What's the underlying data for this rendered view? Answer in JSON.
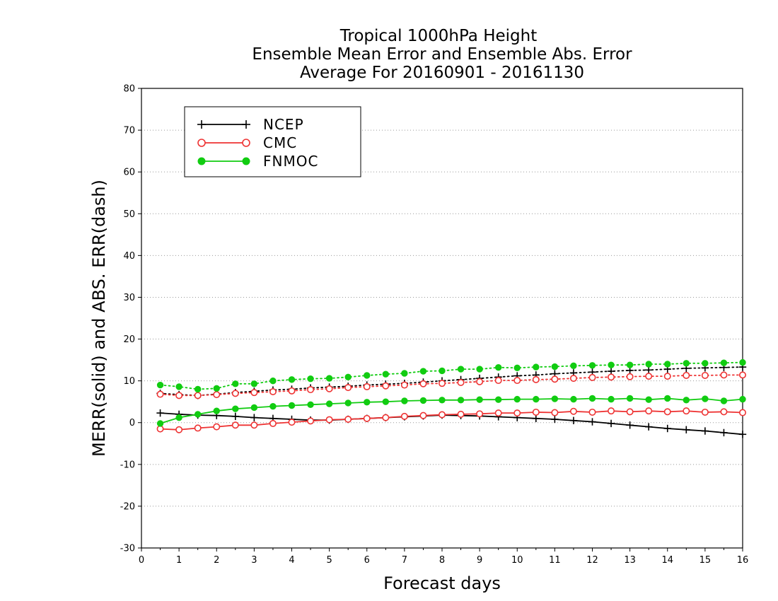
{
  "chart_data": {
    "type": "line",
    "title_lines": [
      "Tropical 1000hPa Height",
      "Ensemble Mean Error and Ensemble Abs. Error",
      "Average For 20160901 - 20161130"
    ],
    "xlabel": "Forecast days",
    "ylabel": "MERR(solid) and ABS. ERR(dash)",
    "xlim": [
      0,
      16
    ],
    "ylim": [
      -30,
      80
    ],
    "xticks": [
      0,
      1,
      2,
      3,
      4,
      5,
      6,
      7,
      8,
      9,
      10,
      11,
      12,
      13,
      14,
      15,
      16
    ],
    "yticks": [
      -30,
      -20,
      -10,
      0,
      10,
      20,
      30,
      40,
      50,
      60,
      70,
      80
    ],
    "grid": "horizontal-dotted",
    "legend_position": "top-left",
    "x": [
      0.5,
      1.0,
      1.5,
      2.0,
      2.5,
      3.0,
      3.5,
      4.0,
      4.5,
      5.0,
      5.5,
      6.0,
      6.5,
      7.0,
      7.5,
      8.0,
      8.5,
      9.0,
      9.5,
      10.0,
      10.5,
      11.0,
      11.5,
      12.0,
      12.5,
      13.0,
      13.5,
      14.0,
      14.5,
      15.0,
      15.5,
      16.0
    ],
    "series": [
      {
        "name": "NCEP",
        "color": "#000000",
        "marker": "plus",
        "mean_error": [
          2.3,
          2.0,
          1.8,
          1.7,
          1.5,
          1.2,
          1.0,
          0.8,
          0.6,
          0.6,
          0.8,
          1.0,
          1.2,
          1.4,
          1.6,
          1.8,
          1.7,
          1.6,
          1.4,
          1.2,
          1.0,
          0.8,
          0.5,
          0.2,
          -0.2,
          -0.6,
          -1.0,
          -1.4,
          -1.7,
          -2.0,
          -2.4,
          -2.8
        ],
        "abs_error": [
          7.0,
          6.7,
          6.5,
          6.8,
          7.2,
          7.5,
          7.8,
          8.0,
          8.3,
          8.5,
          8.7,
          9.0,
          9.2,
          9.4,
          9.7,
          10.0,
          10.3,
          10.6,
          10.9,
          11.2,
          11.4,
          11.7,
          11.9,
          12.1,
          12.3,
          12.5,
          12.6,
          12.8,
          13.0,
          13.1,
          13.2,
          13.3
        ]
      },
      {
        "name": "CMC",
        "color": "#ee3333",
        "marker": "open-circle",
        "mean_error": [
          -1.5,
          -1.7,
          -1.3,
          -1.0,
          -0.6,
          -0.6,
          -0.2,
          0.1,
          0.4,
          0.7,
          0.8,
          1.0,
          1.2,
          1.5,
          1.7,
          1.9,
          2.0,
          2.1,
          2.3,
          2.3,
          2.5,
          2.4,
          2.7,
          2.5,
          2.8,
          2.6,
          2.8,
          2.6,
          2.8,
          2.5,
          2.6,
          2.4
        ],
        "abs_error": [
          6.8,
          6.5,
          6.5,
          6.7,
          7.0,
          7.2,
          7.4,
          7.6,
          7.9,
          8.1,
          8.4,
          8.6,
          8.8,
          9.0,
          9.3,
          9.4,
          9.6,
          9.8,
          10.1,
          10.1,
          10.3,
          10.4,
          10.6,
          10.8,
          10.9,
          11.0,
          11.1,
          11.1,
          11.3,
          11.3,
          11.4,
          11.4
        ]
      },
      {
        "name": "FNMOC",
        "color": "#11cc11",
        "marker": "filled-circle",
        "mean_error": [
          -0.2,
          1.2,
          2.0,
          2.8,
          3.3,
          3.6,
          3.9,
          4.1,
          4.3,
          4.5,
          4.7,
          4.9,
          5.0,
          5.2,
          5.3,
          5.4,
          5.4,
          5.5,
          5.5,
          5.6,
          5.6,
          5.7,
          5.6,
          5.8,
          5.6,
          5.8,
          5.5,
          5.8,
          5.4,
          5.7,
          5.2,
          5.6
        ],
        "abs_error": [
          9.0,
          8.6,
          8.0,
          8.2,
          9.3,
          9.3,
          10.0,
          10.3,
          10.5,
          10.6,
          10.9,
          11.3,
          11.6,
          11.8,
          12.3,
          12.4,
          12.8,
          12.8,
          13.2,
          13.1,
          13.3,
          13.4,
          13.6,
          13.7,
          13.8,
          13.8,
          14.0,
          14.0,
          14.2,
          14.2,
          14.3,
          14.4
        ]
      }
    ]
  }
}
